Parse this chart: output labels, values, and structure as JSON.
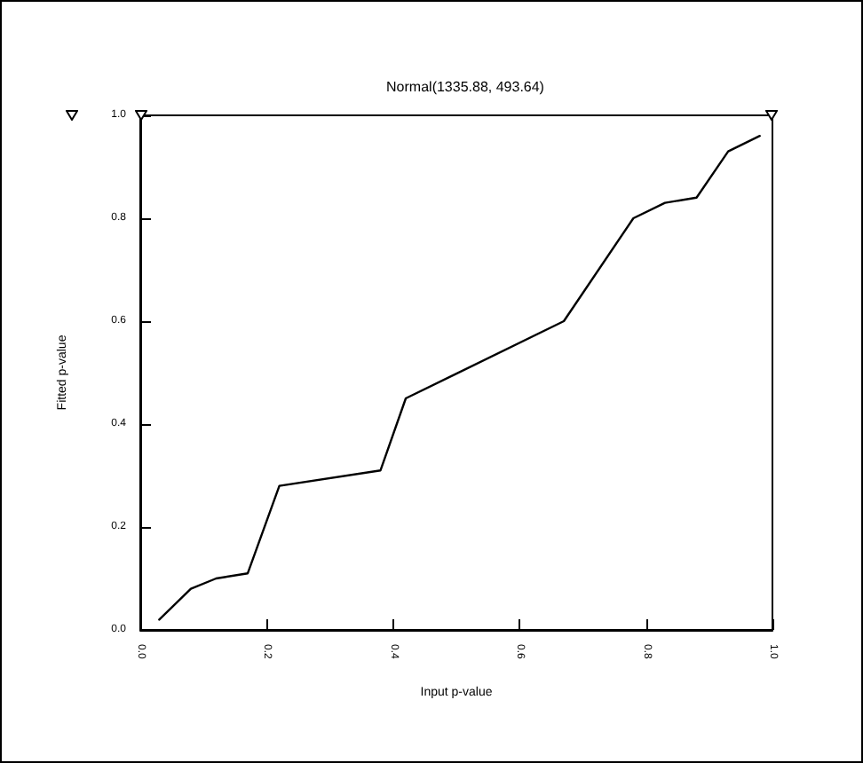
{
  "chart_data": {
    "type": "line",
    "title": "Normal(1335.88, 493.64)",
    "xlabel": "Input p-value",
    "ylabel": "Fitted p-value",
    "x": [
      0.03,
      0.08,
      0.12,
      0.17,
      0.22,
      0.38,
      0.42,
      0.67,
      0.78,
      0.83,
      0.88,
      0.93,
      0.98
    ],
    "series": [
      {
        "color": "#000000",
        "values": [
          0.02,
          0.08,
          0.1,
          0.11,
          0.28,
          0.31,
          0.45,
          0.6,
          0.8,
          0.83,
          0.84,
          0.93,
          0.96
        ]
      }
    ],
    "xlim": [
      0,
      1
    ],
    "ylim": [
      0,
      1
    ],
    "xticks": [
      {
        "value": 0,
        "label": "0.0"
      },
      {
        "value": 0.2,
        "label": "0.2"
      },
      {
        "value": 0.4,
        "label": "0.4"
      },
      {
        "value": 0.6,
        "label": "0.6"
      },
      {
        "value": 0.8,
        "label": "0.8"
      },
      {
        "value": 1,
        "label": "1.0"
      }
    ],
    "yticks": [
      {
        "value": 0,
        "label": "0.0"
      },
      {
        "value": 0.2,
        "label": "0.2"
      },
      {
        "value": 0.4,
        "label": "0.4"
      },
      {
        "value": 0.6,
        "label": "0.6"
      },
      {
        "value": 0.8,
        "label": "0.8"
      },
      {
        "value": 1,
        "label": "1.0"
      }
    ],
    "grid": false,
    "marker": "none",
    "line_style": "solid"
  }
}
